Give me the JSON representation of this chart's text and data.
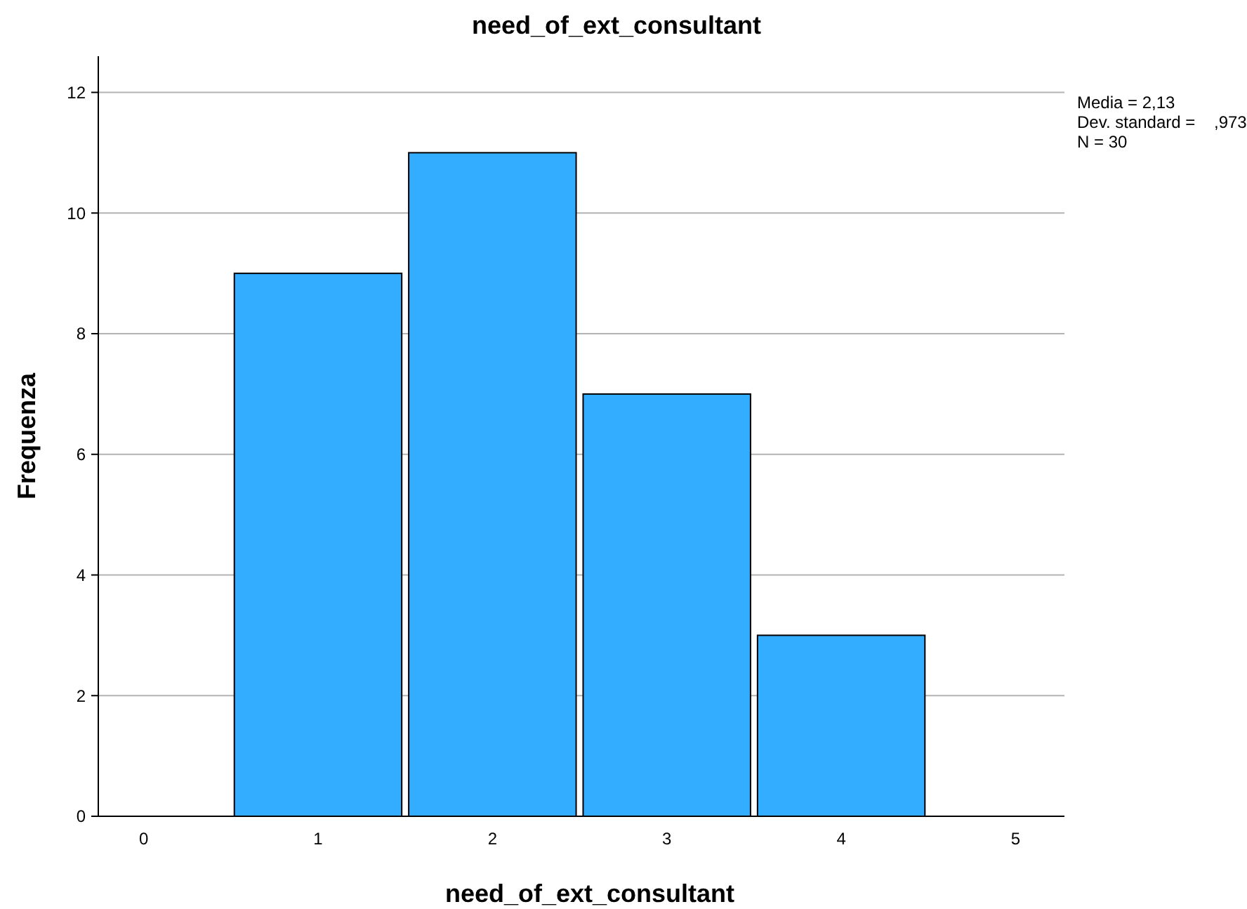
{
  "chart_data": {
    "type": "bar",
    "title": "need_of_ext_consultant",
    "xlabel": "need_of_ext_consultant",
    "ylabel": "Frequenza",
    "categories": [
      "0",
      "1",
      "2",
      "3",
      "4",
      "5"
    ],
    "values": [
      null,
      9,
      11,
      7,
      3,
      null
    ],
    "color": "#33adff",
    "ylim": [
      0,
      12.6
    ],
    "yticks": [
      0,
      2,
      4,
      6,
      8,
      10,
      12
    ],
    "grid": "y",
    "annotations": [
      "Media = 2,13",
      "Dev. standard =    ,973",
      "N = 30"
    ]
  }
}
